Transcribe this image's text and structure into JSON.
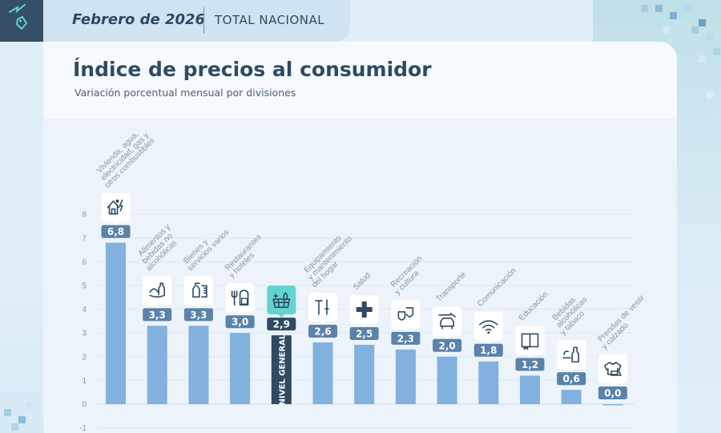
{
  "header": {
    "date": "Febrero de 2026",
    "scope": "TOTAL NACIONAL",
    "logo_icon": "price-tag-trend-icon"
  },
  "card": {
    "title": "Índice de precios al consumidor",
    "subtitle": "Variación porcentual mensual por divisiones"
  },
  "colors": {
    "bar": "#82b0df",
    "value_box": "#5a82ab",
    "highlight_bar": "#2f4a62",
    "highlight_icon_bg": "#62d3cf",
    "icon_bg": "#ffffff",
    "icon_stroke": "#2f4a62"
  },
  "chart_data": {
    "type": "bar",
    "title": "Índice de precios al consumidor",
    "subtitle": "Variación porcentual mensual por divisiones",
    "xlabel": "",
    "ylabel": "",
    "ylim": [
      -1,
      8
    ],
    "yticks": [
      "8",
      "7",
      "6",
      "5",
      "4",
      "3",
      "2",
      "1",
      "0",
      "-1"
    ],
    "ytick_values": [
      8,
      7,
      6,
      5,
      4,
      3,
      2,
      1,
      0,
      -1
    ],
    "grid": true,
    "categories": [
      [
        "Vivienda, agua,",
        "electricidad, gas y",
        "otros combustibles"
      ],
      [
        "Alimentos y",
        "bebidas no",
        "alcohólicas"
      ],
      [
        "Bienes y",
        "servicios varios"
      ],
      [
        "Restaurantes",
        "y hoteles"
      ],
      [
        "NIVEL GENERAL"
      ],
      [
        "Equipamiento",
        "y mantenimiento",
        "del hogar"
      ],
      [
        "Salud"
      ],
      [
        "Recreación",
        "y cultura"
      ],
      [
        "Transporte"
      ],
      [
        "Comunicación"
      ],
      [
        "Educación"
      ],
      [
        "Bebidas",
        "alcohólicas",
        "y tabaco"
      ],
      [
        "Prendas de vestir",
        "y calzado"
      ]
    ],
    "values": [
      6.8,
      3.3,
      3.3,
      3.0,
      2.9,
      2.6,
      2.5,
      2.3,
      2.0,
      1.8,
      1.2,
      0.6,
      0.0
    ],
    "value_labels": [
      "6,8",
      "3,3",
      "3,3",
      "3,0",
      "2,9",
      "2,6",
      "2,5",
      "2,3",
      "2,0",
      "1,8",
      "1,2",
      "0,6",
      "0,0"
    ],
    "icons": [
      "house-utilities-icon",
      "food-bottle-icon",
      "cleaning-products-icon",
      "restaurant-hotel-icon",
      "basket-icon",
      "tools-icon",
      "health-cross-icon",
      "theater-masks-icon",
      "car-icon",
      "wifi-icon",
      "book-icon",
      "bottle-cigarette-icon",
      "shirt-shoe-icon"
    ],
    "highlight_index": 4,
    "highlight_bar_label": "NIVEL GENERAL"
  }
}
